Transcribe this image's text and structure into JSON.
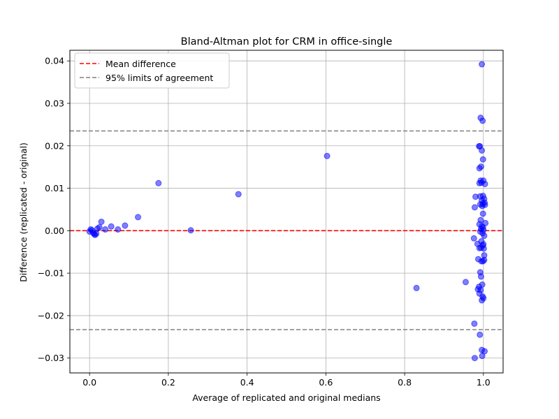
{
  "chart_data": {
    "type": "scatter",
    "title": "Bland-Altman plot for CRM in office-single",
    "xlabel": "Average of replicated and original medians",
    "ylabel": "Difference (replicated - original)",
    "xlim": [
      -0.05,
      1.05
    ],
    "ylim": [
      -0.0335,
      0.0425
    ],
    "xticks": [
      0.0,
      0.2,
      0.4,
      0.6,
      0.8,
      1.0
    ],
    "xtick_labels": [
      "0.0",
      "0.2",
      "0.4",
      "0.6",
      "0.8",
      "1.0"
    ],
    "yticks": [
      -0.03,
      -0.02,
      -0.01,
      0.0,
      0.01,
      0.02,
      0.03,
      0.04
    ],
    "ytick_labels": [
      "−0.03",
      "−0.02",
      "−0.01",
      "0.00",
      "0.01",
      "0.02",
      "0.03",
      "0.04"
    ],
    "grid": true,
    "legend_position": "top-left",
    "legend": [
      {
        "label": "Mean difference",
        "color": "#ff0000",
        "style": "dashed"
      },
      {
        "label": "95% limits of agreement",
        "color": "#808080",
        "style": "dashed"
      }
    ],
    "mean_difference": 0.0,
    "limits_of_agreement": [
      -0.0233,
      0.0235
    ],
    "point_color": "#0000ff",
    "points": [
      [
        0.0,
        -0.0002
      ],
      [
        0.003,
        0.0003
      ],
      [
        0.006,
        0.0001
      ],
      [
        0.009,
        -0.0005
      ],
      [
        0.012,
        -0.0008
      ],
      [
        0.014,
        -0.001
      ],
      [
        0.017,
        -0.0007
      ],
      [
        0.02,
        0.0005
      ],
      [
        0.025,
        0.0008
      ],
      [
        0.03,
        0.0021
      ],
      [
        0.04,
        0.0003
      ],
      [
        0.055,
        0.001
      ],
      [
        0.072,
        0.0003
      ],
      [
        0.09,
        0.0012
      ],
      [
        0.123,
        0.0032
      ],
      [
        0.175,
        0.0112
      ],
      [
        0.257,
        0.0001
      ],
      [
        0.378,
        0.0086
      ],
      [
        0.603,
        0.0176
      ],
      [
        0.83,
        -0.0135
      ],
      [
        0.955,
        -0.0121
      ],
      [
        0.996,
        0.0392
      ],
      [
        0.993,
        0.0266
      ],
      [
        0.998,
        0.0259
      ],
      [
        0.989,
        0.0199
      ],
      [
        0.991,
        0.0199
      ],
      [
        0.996,
        0.0189
      ],
      [
        0.999,
        0.0168
      ],
      [
        0.994,
        0.0151
      ],
      [
        0.99,
        0.0147
      ],
      [
        0.993,
        0.0118
      ],
      [
        1.0,
        0.0118
      ],
      [
        0.995,
        0.0113
      ],
      [
        1.004,
        0.011
      ],
      [
        0.99,
        0.0112
      ],
      [
        0.98,
        0.008
      ],
      [
        0.992,
        0.0081
      ],
      [
        0.999,
        0.0082
      ],
      [
        1.002,
        0.0075
      ],
      [
        0.996,
        0.0071
      ],
      [
        1.003,
        0.0066
      ],
      [
        0.998,
        0.0063
      ],
      [
        0.992,
        0.0062
      ],
      [
        1.004,
        0.0061
      ],
      [
        0.997,
        0.0058
      ],
      [
        0.978,
        0.0055
      ],
      [
        0.999,
        0.004
      ],
      [
        0.993,
        0.0025
      ],
      [
        1.005,
        0.0018
      ],
      [
        0.99,
        0.0015
      ],
      [
        0.996,
        0.001
      ],
      [
        0.999,
        0.0008
      ],
      [
        0.994,
        0.0004
      ],
      [
        1.0,
        0.0002
      ],
      [
        0.992,
        -0.0002
      ],
      [
        0.998,
        -0.0006
      ],
      [
        1.002,
        -0.0012
      ],
      [
        0.976,
        -0.0018
      ],
      [
        0.995,
        -0.0025
      ],
      [
        1.0,
        -0.0032
      ],
      [
        0.985,
        -0.0031
      ],
      [
        0.99,
        -0.0041
      ],
      [
        0.998,
        -0.0035
      ],
      [
        1.001,
        -0.0042
      ],
      [
        0.994,
        -0.004
      ],
      [
        1.002,
        -0.0058
      ],
      [
        0.987,
        -0.0067
      ],
      [
        0.999,
        -0.0072
      ],
      [
        1.002,
        -0.0069
      ],
      [
        0.995,
        -0.0072
      ],
      [
        0.992,
        -0.0098
      ],
      [
        0.994,
        -0.0108
      ],
      [
        0.997,
        -0.0127
      ],
      [
        0.989,
        -0.0132
      ],
      [
        0.986,
        -0.0138
      ],
      [
        0.993,
        -0.014
      ],
      [
        0.99,
        -0.0148
      ],
      [
        0.998,
        -0.0155
      ],
      [
        1.0,
        -0.0159
      ],
      [
        0.996,
        -0.0164
      ],
      [
        0.977,
        -0.0219
      ],
      [
        0.991,
        -0.0245
      ],
      [
        0.996,
        -0.0281
      ],
      [
        1.003,
        -0.0284
      ],
      [
        0.997,
        -0.0295
      ],
      [
        0.978,
        -0.03
      ]
    ]
  }
}
